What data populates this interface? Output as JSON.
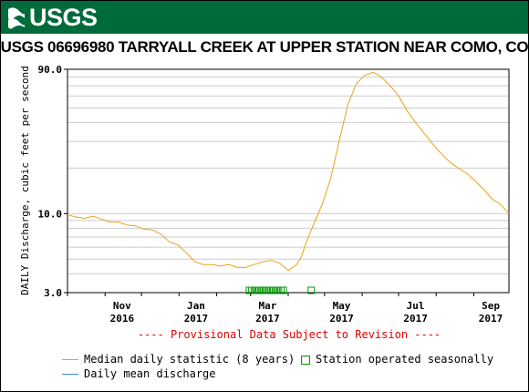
{
  "header": {
    "logo_text": "USGS"
  },
  "chart_data": {
    "type": "line",
    "title": "USGS 06696980 TARRYALL CREEK AT UPPER STATION NEAR COMO, CO",
    "ylabel": "DAILY Discharge, cubic feet per second",
    "y_scale": "log",
    "ylim": [
      3.0,
      90.0
    ],
    "y_tick_labels": [
      "3.0",
      "10.0",
      "90.0"
    ],
    "x_tick_labels": [
      {
        "month": "Nov",
        "year": "2016"
      },
      {
        "month": "Jan",
        "year": "2017"
      },
      {
        "month": "Mar",
        "year": "2017"
      },
      {
        "month": "May",
        "year": "2017"
      },
      {
        "month": "Jul",
        "year": "2017"
      },
      {
        "month": "Sep",
        "year": "2017"
      }
    ],
    "provisional_text": "---- Provisional Data Subject to Revision ----",
    "series": [
      {
        "name": "Median daily statistic (8 years)",
        "color": "#e8a317",
        "x": [
          "2016-10-01",
          "2016-10-08",
          "2016-10-15",
          "2016-10-22",
          "2016-10-29",
          "2016-11-05",
          "2016-11-12",
          "2016-11-19",
          "2016-11-26",
          "2016-12-03",
          "2016-12-10",
          "2016-12-17",
          "2016-12-24",
          "2016-12-31",
          "2017-01-07",
          "2017-01-14",
          "2017-01-21",
          "2017-01-28",
          "2017-02-04",
          "2017-02-11",
          "2017-02-18",
          "2017-02-25",
          "2017-03-04",
          "2017-03-11",
          "2017-03-18",
          "2017-03-25",
          "2017-04-01",
          "2017-04-08",
          "2017-04-12",
          "2017-04-15",
          "2017-04-22",
          "2017-04-29",
          "2017-05-06",
          "2017-05-13",
          "2017-05-20",
          "2017-05-27",
          "2017-06-03",
          "2017-06-10",
          "2017-06-17",
          "2017-06-24",
          "2017-07-01",
          "2017-07-08",
          "2017-07-15",
          "2017-07-22",
          "2017-07-29",
          "2017-08-05",
          "2017-08-12",
          "2017-08-19",
          "2017-08-26",
          "2017-09-02",
          "2017-09-09",
          "2017-09-16",
          "2017-09-23",
          "2017-09-30"
        ],
        "y": [
          9.8,
          9.5,
          9.3,
          9.6,
          9.2,
          8.8,
          8.8,
          8.4,
          8.3,
          7.9,
          7.8,
          7.3,
          6.5,
          6.2,
          5.5,
          4.8,
          4.6,
          4.6,
          4.5,
          4.6,
          4.4,
          4.4,
          4.6,
          4.8,
          4.9,
          4.7,
          4.2,
          4.6,
          5.2,
          6.2,
          8.5,
          11.5,
          17,
          30,
          52,
          72,
          82,
          86,
          80,
          70,
          60,
          48,
          40,
          34,
          29,
          25,
          22,
          20,
          18.5,
          16.5,
          14.5,
          12.5,
          11.5,
          10
        ]
      },
      {
        "name": "Daily mean discharge",
        "color": "#3a8fd6",
        "x": [],
        "y": []
      }
    ],
    "seasonal_marker": {
      "name": "Station operated seasonally",
      "color": "#009900",
      "dates": [
        "2017-02-28",
        "2017-03-02",
        "2017-03-04",
        "2017-03-06",
        "2017-03-08",
        "2017-03-10",
        "2017-03-12",
        "2017-03-14",
        "2017-03-16",
        "2017-03-18",
        "2017-03-20",
        "2017-03-22",
        "2017-03-24",
        "2017-03-26",
        "2017-03-28",
        "2017-04-20"
      ]
    }
  }
}
